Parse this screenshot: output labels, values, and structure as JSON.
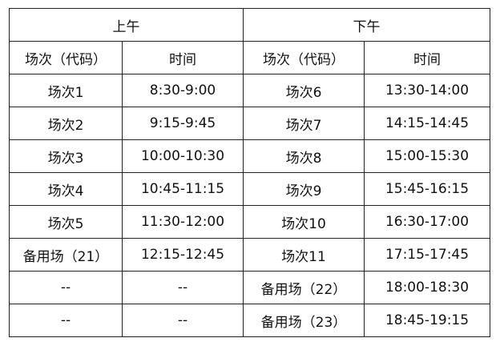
{
  "header": {
    "morning": "上午",
    "afternoon": "下午"
  },
  "columns": {
    "session": "场次（代码）",
    "time": "时间"
  },
  "rows": [
    {
      "am_session": "场次1",
      "am_time": "8:30-9:00",
      "pm_session": "场次6",
      "pm_time": "13:30-14:00"
    },
    {
      "am_session": "场次2",
      "am_time": "9:15-9:45",
      "pm_session": "场次7",
      "pm_time": "14:15-14:45"
    },
    {
      "am_session": "场次3",
      "am_time": "10:00-10:30",
      "pm_session": "场次8",
      "pm_time": "15:00-15:30"
    },
    {
      "am_session": "场次4",
      "am_time": "10:45-11:15",
      "pm_session": "场次9",
      "pm_time": "15:45-16:15"
    },
    {
      "am_session": "场次5",
      "am_time": "11:30-12:00",
      "pm_session": "场次10",
      "pm_time": "16:30-17:00"
    },
    {
      "am_session": "备用场（21）",
      "am_time": "12:15-12:45",
      "pm_session": "场次11",
      "pm_time": "17:15-17:45"
    },
    {
      "am_session": "--",
      "am_time": "--",
      "pm_session": "备用场（22）",
      "pm_time": "18:00-18:30"
    },
    {
      "am_session": "--",
      "am_time": "--",
      "pm_session": "备用场（23）",
      "pm_time": "18:45-19:15"
    }
  ]
}
